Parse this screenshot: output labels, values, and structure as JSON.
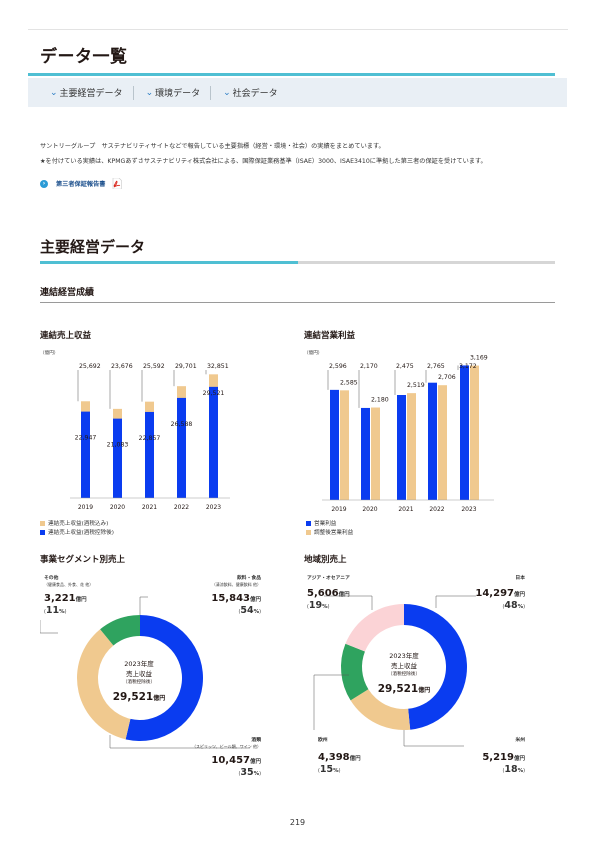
{
  "page": {
    "title": "データ一覧",
    "page_number": "219"
  },
  "tabs": [
    {
      "label": "主要経営データ"
    },
    {
      "label": "環境データ"
    },
    {
      "label": "社会データ"
    }
  ],
  "intro": {
    "line1": "サントリーグループ　サステナビリティサイトなどで報告している主要指標（経営・環境・社会）の実績をまとめています。",
    "line2": "★を付けている実績は、KPMGあずさサステナビリティ株式会社による、国際保証業務基準（ISAE）3000、ISAE3410に準拠した第三者の保証を受けています。"
  },
  "report_link": {
    "label": "第三者保証報告書",
    "icon": "pdf-icon"
  },
  "section": {
    "title": "主要経営データ",
    "subtitle": "連結経営成績"
  },
  "colors": {
    "accent": "#4fbfd3",
    "blue": "#0a3cf0",
    "tan": "#f0c98f",
    "green": "#2fa35f",
    "pink": "#fbd3d6"
  },
  "chart_data": [
    {
      "type": "bar",
      "title": "連結売上収益",
      "unit": "（億円）",
      "categories": [
        "2019",
        "2020",
        "2021",
        "2022",
        "2023"
      ],
      "series": [
        {
          "name": "連結売上収益(酒税込み)",
          "values": [
            25692,
            23676,
            25592,
            29701,
            32851
          ],
          "value_labels": [
            "25,692",
            "23,676",
            "25,592",
            "29,701",
            "32,851"
          ]
        },
        {
          "name": "連結売上収益(酒税控除後)",
          "values": [
            22947,
            21083,
            22857,
            26588,
            29521
          ],
          "value_labels": [
            "22,947",
            "21,083",
            "22,857",
            "26,588",
            "29,521"
          ]
        }
      ],
      "ylim": [
        0,
        34000
      ]
    },
    {
      "type": "bar",
      "title": "連結営業利益",
      "unit": "（億円）",
      "categories": [
        "2019",
        "2020",
        "2021",
        "2022",
        "2023"
      ],
      "series": [
        {
          "name": "営業利益",
          "values": [
            2596,
            2170,
            2475,
            2765,
            3172
          ],
          "value_labels": [
            "2,596",
            "2,170",
            "2,475",
            "2,765",
            "3,172"
          ]
        },
        {
          "name": "調整後営業利益",
          "values": [
            2585,
            2180,
            2519,
            2706,
            3169
          ],
          "value_labels": [
            "2,585",
            "2,180",
            "2,519",
            "2,706",
            "3,169"
          ]
        }
      ],
      "ylim": [
        0,
        3300
      ]
    },
    {
      "type": "pie",
      "title": "事業セグメント別売上",
      "center": {
        "line1": "2023年度",
        "line2": "売上収益",
        "line3": "（酒税控除後）",
        "value": "29,521",
        "unit": "億円"
      },
      "slices": [
        {
          "name": "飲料・食品",
          "note": "（清涼飲料、健康飲料 他）",
          "value": 15843,
          "value_label": "15,843",
          "unit": "億円",
          "pct": 54,
          "pct_label": "54",
          "color": "#0a3cf0"
        },
        {
          "name": "酒類",
          "note": "（スピリッツ、ビール類、ワイン 他）",
          "value": 10457,
          "value_label": "10,457",
          "unit": "億円",
          "pct": 35,
          "pct_label": "35",
          "color": "#f0c98f"
        },
        {
          "name": "その他",
          "note": "（健康食品、外食、花 他）",
          "value": 3221,
          "value_label": "3,221",
          "unit": "億円",
          "pct": 11,
          "pct_label": "11",
          "color": "#2fa35f"
        }
      ]
    },
    {
      "type": "pie",
      "title": "地域別売上",
      "center": {
        "line1": "2023年度",
        "line2": "売上収益",
        "line3": "（酒税控除後）",
        "value": "29,521",
        "unit": "億円"
      },
      "slices": [
        {
          "name": "日本",
          "value": 14297,
          "value_label": "14,297",
          "unit": "億円",
          "pct": 48,
          "pct_label": "48",
          "color": "#0a3cf0"
        },
        {
          "name": "米州",
          "value": 5219,
          "value_label": "5,219",
          "unit": "億円",
          "pct": 18,
          "pct_label": "18",
          "color": "#f0c98f"
        },
        {
          "name": "欧州",
          "value": 4398,
          "value_label": "4,398",
          "unit": "億円",
          "pct": 15,
          "pct_label": "15",
          "color": "#2fa35f"
        },
        {
          "name": "アジア・オセアニア",
          "value": 5606,
          "value_label": "5,606",
          "unit": "億円",
          "pct": 19,
          "pct_label": "19",
          "color": "#fbd3d6"
        }
      ]
    }
  ]
}
